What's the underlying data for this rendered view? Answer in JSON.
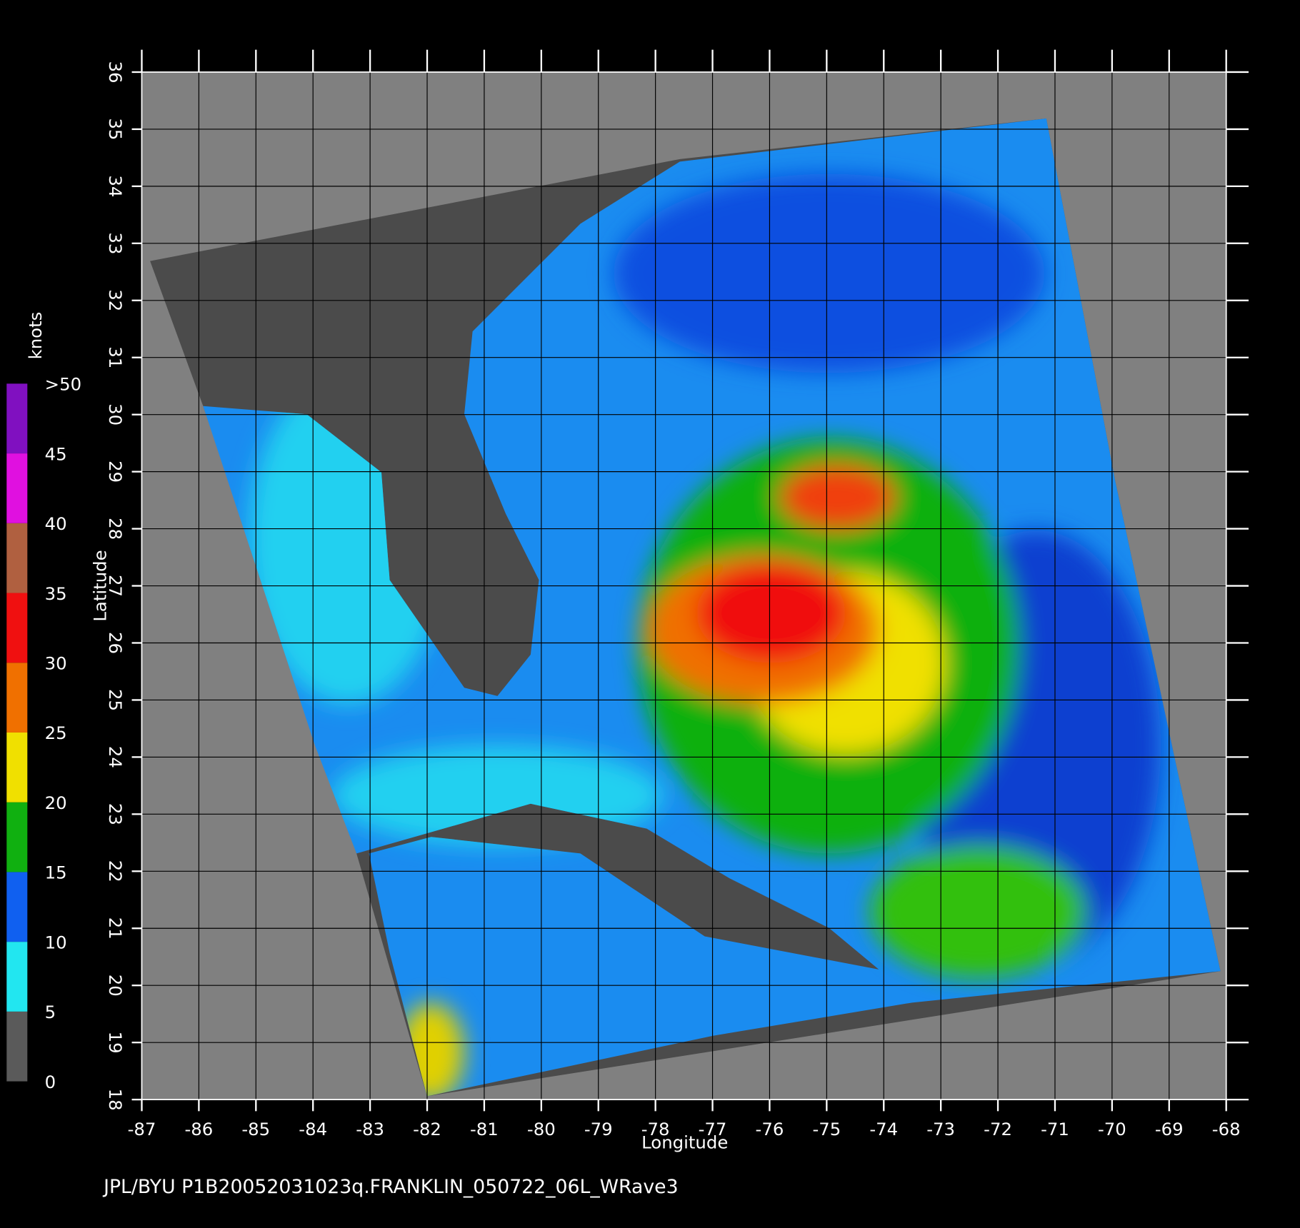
{
  "map": {
    "xlabel": "Longitude",
    "ylabel": "Latitude",
    "xlim": [
      -87,
      -68
    ],
    "ylim": [
      18,
      36
    ],
    "xticks": [
      -87,
      -86,
      -85,
      -84,
      -83,
      -82,
      -81,
      -80,
      -79,
      -78,
      -77,
      -76,
      -75,
      -74,
      -73,
      -72,
      -71,
      -70,
      -69,
      -68
    ],
    "yticks": [
      18,
      19,
      20,
      21,
      22,
      23,
      24,
      25,
      26,
      27,
      28,
      29,
      30,
      31,
      32,
      33,
      34,
      35,
      36
    ],
    "grid": true
  },
  "colorbar": {
    "title": "knots",
    "ticks": [
      0,
      5,
      10,
      15,
      20,
      25,
      30,
      35,
      40,
      45,
      {
        "value": 50,
        "label": ">50"
      }
    ],
    "colors": [
      "#5a5a5a",
      "#22e6f0",
      "#1060f0",
      "#10b010",
      "#f0e000",
      "#f07000",
      "#f01010",
      "#b06040",
      "#e010e0",
      "#8010c0"
    ]
  },
  "footer": "JPL/BYU  P1B20052031023q.FRANKLIN_050722_06L_WRave3"
}
